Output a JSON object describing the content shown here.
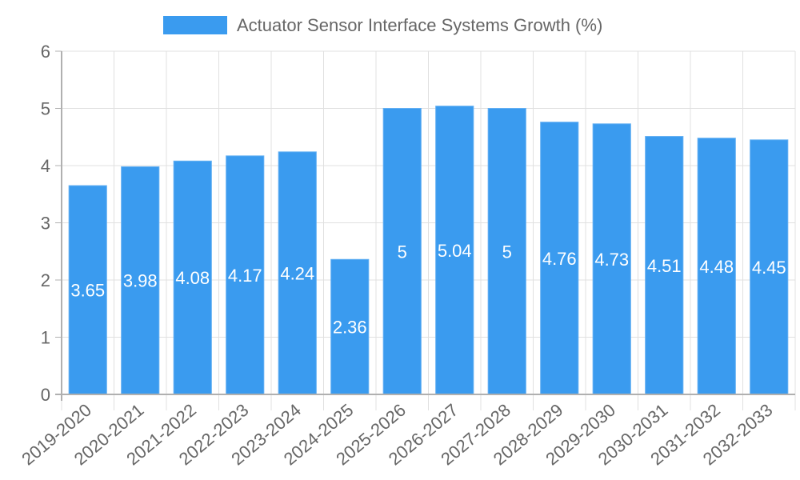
{
  "legend": {
    "label": "Actuator Sensor Interface Systems Growth (%)",
    "color": "#3a9bef"
  },
  "colors": {
    "bar_fill": "#3a9bef",
    "bar_border": "#63b0f3",
    "grid": "#e0e0e0",
    "axis": "#b0b0b0",
    "text": "#666666",
    "label_text": "#ffffff"
  },
  "chart_data": {
    "type": "bar",
    "title": "",
    "xlabel": "",
    "ylabel": "",
    "legend_position": "top",
    "grid": true,
    "ylim": [
      0,
      6
    ],
    "yticks": [
      0,
      1,
      2,
      3,
      4,
      5,
      6
    ],
    "categories": [
      "2019-2020",
      "2020-2021",
      "2021-2022",
      "2022-2023",
      "2023-2024",
      "2024-2025",
      "2025-2026",
      "2026-2027",
      "2027-2028",
      "2028-2029",
      "2029-2030",
      "2030-2031",
      "2031-2032",
      "2032-2033"
    ],
    "series": [
      {
        "name": "Actuator Sensor Interface Systems Growth (%)",
        "values": [
          3.65,
          3.98,
          4.08,
          4.17,
          4.24,
          2.36,
          5,
          5.04,
          5,
          4.76,
          4.73,
          4.51,
          4.48,
          4.45
        ]
      }
    ]
  }
}
